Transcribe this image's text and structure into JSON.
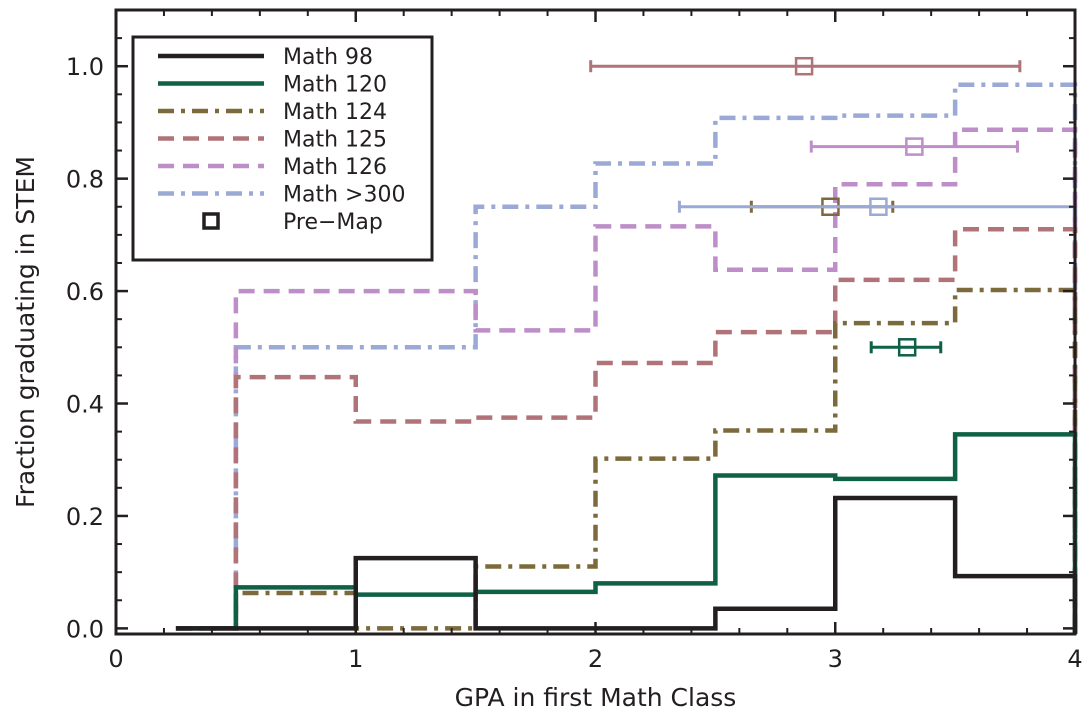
{
  "chart_data": {
    "type": "line",
    "step": true,
    "xlabel": "GPA in first Math Class",
    "ylabel": "Fraction graduating in STEM",
    "xlim": [
      0,
      4
    ],
    "ylim": [
      -0.01,
      1.1
    ],
    "xticks": [
      "0",
      "1",
      "2",
      "3",
      "4"
    ],
    "yticks": [
      "0.0",
      "0.2",
      "0.4",
      "0.6",
      "0.8",
      "1.0"
    ],
    "legend_position": "top-left",
    "grid": false,
    "bin_edges": [
      0.25,
      0.5,
      1.0,
      1.5,
      2.0,
      2.5,
      3.0,
      3.5,
      4.0
    ],
    "series": [
      {
        "name": "Math 98",
        "color": "#231f20",
        "dash": "solid",
        "values": [
          0.0,
          0.0,
          0.125,
          0.0,
          0.0,
          0.035,
          0.232,
          0.093
        ]
      },
      {
        "name": "Math 120",
        "color": "#0e6046",
        "dash": "solid",
        "values": [
          0.0,
          0.073,
          0.06,
          0.065,
          0.08,
          0.272,
          0.266,
          0.345
        ]
      },
      {
        "name": "Math 124",
        "color": "#7c6a3c",
        "dash": "dashdot",
        "values": [
          0.0,
          0.063,
          0.0,
          0.11,
          0.302,
          0.352,
          0.543,
          0.602
        ]
      },
      {
        "name": "Math 125",
        "color": "#b07378",
        "dash": "dash",
        "values": [
          0.0,
          0.447,
          0.368,
          0.375,
          0.472,
          0.527,
          0.62,
          0.71
        ]
      },
      {
        "name": "Math 126",
        "color": "#bd8ec8",
        "dash": "dash",
        "values": [
          0.0,
          0.6,
          0.6,
          0.53,
          0.715,
          0.638,
          0.79,
          0.887
        ]
      },
      {
        "name": "Math >300",
        "color": "#9ba9d6",
        "dash": "dashdot",
        "values": [
          0.0,
          0.5,
          0.5,
          0.75,
          0.827,
          0.908,
          0.912,
          0.967
        ]
      }
    ],
    "premap": {
      "label": "Pre−Map",
      "points": [
        {
          "series": "Math 125",
          "x": 2.87,
          "y": 1.0,
          "xerr_low": 1.98,
          "xerr_high": 3.77
        },
        {
          "series": "Math 126",
          "x": 3.33,
          "y": 0.857,
          "xerr_low": 2.9,
          "xerr_high": 3.76
        },
        {
          "series": "Math 124",
          "x": 2.98,
          "y": 0.75,
          "xerr_low": 2.65,
          "xerr_high": 3.24
        },
        {
          "series": "Math >300",
          "x": 3.18,
          "y": 0.75,
          "xerr_low": 2.35,
          "xerr_high": 4.0
        },
        {
          "series": "Math 120",
          "x": 3.3,
          "y": 0.5,
          "xerr_low": 3.15,
          "xerr_high": 3.44
        }
      ]
    }
  }
}
